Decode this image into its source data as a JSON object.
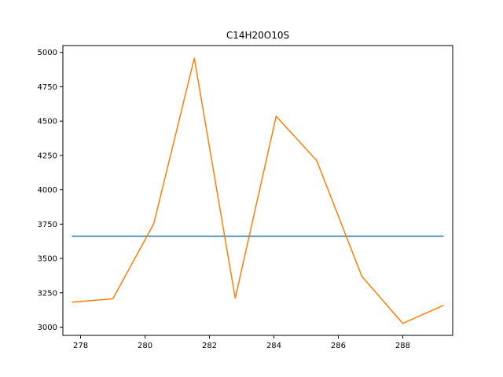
{
  "chart_data": {
    "type": "line",
    "title": "C14H20O10S",
    "xlabel": "",
    "ylabel": "",
    "xlim": [
      277.45,
      289.55
    ],
    "ylim": [
      2940,
      5050
    ],
    "grid": false,
    "x_ticks": [
      278,
      280,
      282,
      284,
      286,
      288
    ],
    "y_ticks": [
      3000,
      3250,
      3500,
      3750,
      4000,
      4250,
      4500,
      4750,
      5000
    ],
    "series": [
      {
        "color": "#1f77b4",
        "x": [
          277.75,
          289.25
        ],
        "y": [
          3662,
          3662
        ]
      },
      {
        "color": "#ff7f0e",
        "x": [
          277.75,
          279.0,
          280.27,
          281.53,
          282.8,
          284.07,
          285.33,
          286.73,
          288.0,
          289.25
        ],
        "y": [
          3182,
          3206,
          3752,
          4958,
          3210,
          4535,
          4212,
          3370,
          3027,
          3157
        ]
      }
    ]
  }
}
